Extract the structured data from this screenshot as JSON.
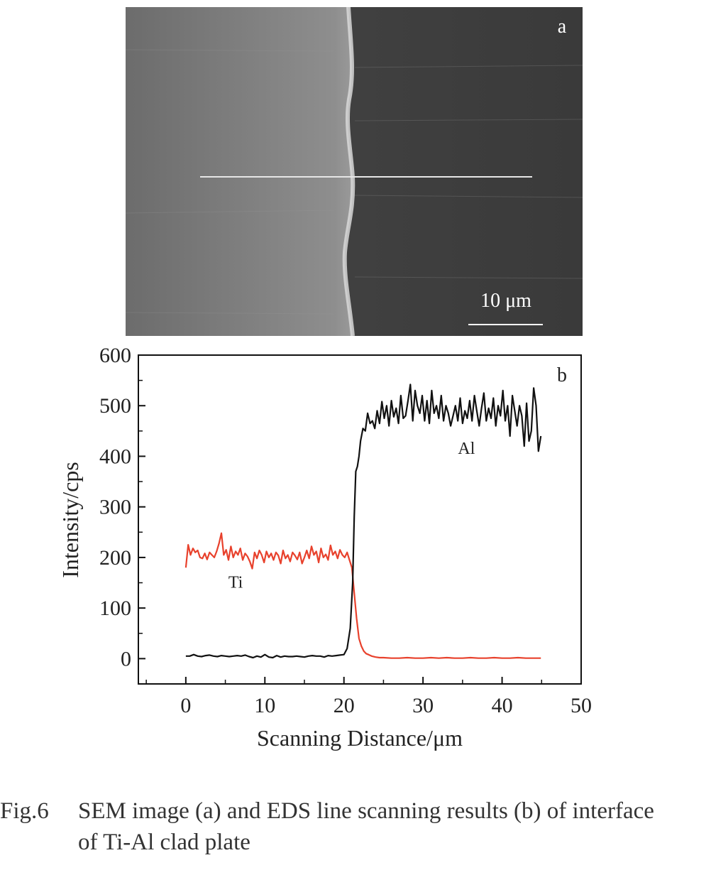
{
  "panel_a": {
    "label": "a",
    "scale_bar": "10 μm"
  },
  "panel_b": {
    "label": "b"
  },
  "caption": {
    "number": "Fig.6",
    "line1": "SEM image (a) and EDS line scanning results (b) of interface",
    "line2": "of Ti-Al clad plate"
  },
  "chart_data": {
    "type": "line",
    "xlabel": "Scanning Distance/μm",
    "ylabel": "Intensity/cps",
    "xlim": [
      -6,
      50
    ],
    "ylim": [
      -50,
      600
    ],
    "xticks": [
      0,
      10,
      20,
      30,
      40,
      50
    ],
    "yticks": [
      0,
      100,
      200,
      300,
      400,
      500,
      600
    ],
    "annotations": [
      {
        "text": "Al",
        "x": 35.5,
        "y": 405
      },
      {
        "text": "Ti",
        "x": 6.3,
        "y": 140
      }
    ],
    "series": [
      {
        "name": "Ti",
        "color": "#e8412c",
        "x": [
          0,
          0.3,
          0.6,
          0.9,
          1.2,
          1.5,
          1.8,
          2.1,
          2.4,
          2.7,
          3.0,
          3.3,
          3.6,
          3.9,
          4.2,
          4.5,
          4.8,
          5.1,
          5.4,
          5.7,
          6.0,
          6.3,
          6.6,
          6.9,
          7.2,
          7.5,
          7.8,
          8.1,
          8.4,
          8.7,
          9.0,
          9.3,
          9.6,
          9.9,
          10.2,
          10.5,
          10.8,
          11.1,
          11.4,
          11.7,
          12.0,
          12.3,
          12.6,
          12.9,
          13.2,
          13.5,
          13.8,
          14.1,
          14.4,
          14.7,
          15.0,
          15.3,
          15.6,
          15.9,
          16.2,
          16.5,
          16.8,
          17.1,
          17.4,
          17.7,
          18.0,
          18.3,
          18.6,
          18.9,
          19.2,
          19.5,
          19.8,
          20.1,
          20.4,
          20.7,
          21.0,
          21.3,
          21.6,
          21.9,
          22.2,
          22.5,
          22.8,
          23.1,
          23.5,
          24.0,
          24.5,
          25.0,
          26.0,
          27.0,
          28.0,
          29.0,
          30.0,
          31.0,
          32.0,
          33.0,
          34.0,
          35.0,
          36.0,
          37.0,
          38.0,
          39.0,
          40.0,
          41.0,
          42.0,
          43.0,
          44.0,
          44.9
        ],
        "y": [
          180,
          225,
          205,
          218,
          210,
          214,
          200,
          198,
          208,
          196,
          210,
          205,
          200,
          212,
          228,
          248,
          205,
          215,
          195,
          222,
          200,
          212,
          205,
          218,
          195,
          208,
          202,
          192,
          178,
          210,
          198,
          214,
          205,
          190,
          212,
          200,
          208,
          195,
          210,
          204,
          188,
          214,
          198,
          205,
          192,
          210,
          204,
          196,
          210,
          188,
          200,
          214,
          198,
          222,
          205,
          212,
          190,
          218,
          200,
          206,
          195,
          224,
          205,
          212,
          198,
          215,
          205,
          200,
          210,
          195,
          180,
          130,
          80,
          40,
          25,
          15,
          10,
          8,
          5,
          3,
          2,
          2,
          1,
          1,
          2,
          1,
          1,
          2,
          1,
          2,
          1,
          1,
          2,
          1,
          1,
          2,
          1,
          1,
          2,
          1,
          1,
          1
        ]
      },
      {
        "name": "Al",
        "color": "#111111",
        "x": [
          0,
          0.5,
          1.0,
          1.5,
          2.0,
          2.5,
          3.0,
          3.5,
          4.0,
          4.5,
          5.0,
          5.5,
          6.0,
          6.5,
          7.0,
          7.5,
          8.0,
          8.5,
          9.0,
          9.5,
          10.0,
          10.5,
          11.0,
          11.5,
          12.0,
          12.5,
          13.0,
          13.5,
          14.0,
          14.5,
          15.0,
          15.5,
          16.0,
          16.5,
          17.0,
          17.5,
          18.0,
          18.5,
          19.0,
          19.5,
          20.0,
          20.4,
          20.8,
          21.1,
          21.3,
          21.5,
          21.7,
          21.9,
          22.1,
          22.4,
          22.7,
          23.0,
          23.3,
          23.6,
          23.9,
          24.2,
          24.5,
          24.8,
          25.1,
          25.4,
          25.7,
          26.0,
          26.3,
          26.6,
          26.9,
          27.2,
          27.5,
          27.8,
          28.1,
          28.4,
          28.7,
          29.0,
          29.3,
          29.6,
          29.9,
          30.2,
          30.5,
          30.8,
          31.1,
          31.4,
          31.7,
          32.0,
          32.3,
          32.6,
          32.9,
          33.2,
          33.5,
          33.8,
          34.1,
          34.4,
          34.7,
          35.0,
          35.3,
          35.6,
          35.9,
          36.2,
          36.5,
          36.8,
          37.1,
          37.4,
          37.7,
          38.0,
          38.3,
          38.6,
          38.9,
          39.2,
          39.5,
          39.8,
          40.1,
          40.4,
          40.7,
          41.0,
          41.3,
          41.6,
          41.9,
          42.2,
          42.5,
          42.8,
          43.1,
          43.4,
          43.7,
          44.0,
          44.3,
          44.6,
          44.9
        ],
        "y": [
          5,
          5,
          8,
          5,
          4,
          6,
          7,
          5,
          4,
          6,
          5,
          4,
          5,
          6,
          5,
          7,
          4,
          2,
          5,
          3,
          8,
          3,
          2,
          6,
          3,
          5,
          4,
          4,
          5,
          4,
          3,
          5,
          6,
          5,
          5,
          3,
          6,
          5,
          6,
          7,
          8,
          20,
          60,
          150,
          280,
          370,
          380,
          400,
          430,
          455,
          450,
          485,
          465,
          470,
          455,
          490,
          465,
          508,
          475,
          500,
          460,
          510,
          478,
          495,
          465,
          520,
          475,
          480,
          510,
          542,
          470,
          530,
          500,
          485,
          520,
          470,
          510,
          465,
          530,
          485,
          500,
          475,
          520,
          470,
          500,
          485,
          460,
          480,
          500,
          470,
          515,
          465,
          490,
          475,
          510,
          470,
          520,
          490,
          460,
          495,
          525,
          470,
          495,
          475,
          515,
          460,
          500,
          480,
          530,
          470,
          500,
          440,
          520,
          490,
          460,
          500,
          480,
          420,
          505,
          430,
          450,
          535,
          500,
          410,
          440
        ]
      }
    ]
  }
}
